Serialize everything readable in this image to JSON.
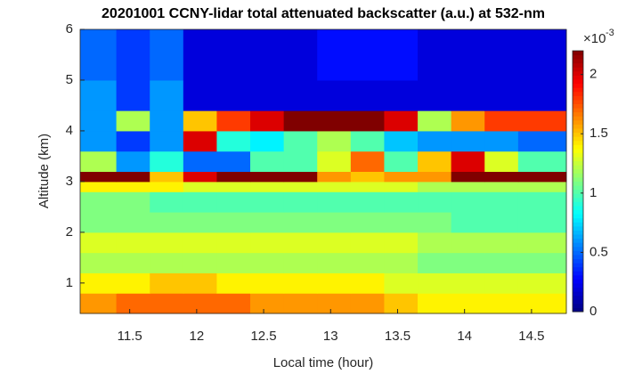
{
  "chart_data": {
    "type": "heatmap",
    "title": "20201001 CCNY-lidar total attenuated backscatter (a.u.) at 532-nm",
    "x_label": "Local time (hour)",
    "y_label": "Altitude (km)",
    "xbins": [
      11.13,
      11.4,
      11.65,
      11.9,
      12.15,
      12.4,
      12.65,
      12.9,
      13.15,
      13.4,
      13.65,
      13.9,
      14.15,
      14.4,
      14.76
    ],
    "ybins": [
      0.4,
      0.8,
      1.2,
      1.6,
      2.0,
      2.4,
      2.8,
      3.0,
      3.2,
      3.6,
      4.0,
      4.4,
      5.0,
      6.0
    ],
    "values": [
      [
        1.6,
        1.7,
        1.7,
        1.7,
        1.7,
        1.6,
        1.6,
        1.6,
        1.6,
        1.5,
        1.4,
        1.4,
        1.4,
        1.4
      ],
      [
        1.4,
        1.4,
        1.5,
        1.5,
        1.4,
        1.4,
        1.4,
        1.4,
        1.4,
        1.3,
        1.3,
        1.3,
        1.3,
        1.3
      ],
      [
        1.2,
        1.2,
        1.2,
        1.2,
        1.2,
        1.2,
        1.2,
        1.2,
        1.2,
        1.2,
        1.1,
        1.1,
        1.1,
        1.1
      ],
      [
        1.3,
        1.3,
        1.3,
        1.3,
        1.3,
        1.3,
        1.3,
        1.3,
        1.3,
        1.3,
        1.2,
        1.2,
        1.2,
        1.2
      ],
      [
        1.1,
        1.1,
        1.1,
        1.1,
        1.1,
        1.1,
        1.1,
        1.1,
        1.1,
        1.1,
        1.1,
        1.0,
        1.0,
        1.0
      ],
      [
        1.1,
        1.1,
        1.0,
        1.0,
        1.0,
        1.0,
        1.0,
        1.0,
        1.0,
        1.0,
        1.0,
        1.0,
        1.0,
        1.0
      ],
      [
        1.4,
        1.4,
        1.4,
        1.3,
        1.3,
        1.3,
        1.3,
        1.3,
        1.3,
        1.3,
        1.2,
        1.2,
        1.2,
        1.2
      ],
      [
        2.2,
        2.2,
        1.5,
        2.0,
        2.2,
        2.2,
        2.2,
        1.6,
        1.5,
        1.6,
        1.6,
        2.2,
        2.2,
        2.2
      ],
      [
        1.2,
        0.6,
        0.9,
        0.5,
        0.5,
        1.0,
        1.0,
        1.3,
        1.7,
        1.0,
        1.5,
        2.0,
        1.3,
        1.0
      ],
      [
        0.6,
        0.4,
        0.6,
        2.0,
        0.9,
        0.8,
        1.0,
        1.2,
        1.0,
        0.7,
        0.6,
        0.6,
        0.6,
        0.5
      ],
      [
        0.6,
        1.2,
        0.6,
        1.5,
        1.8,
        2.0,
        2.2,
        2.2,
        2.2,
        2.0,
        1.2,
        1.6,
        1.8,
        1.8
      ],
      [
        0.6,
        0.4,
        0.6,
        0.2,
        0.2,
        0.2,
        0.2,
        0.2,
        0.2,
        0.2,
        0.2,
        0.2,
        0.2,
        0.2
      ],
      [
        0.5,
        0.4,
        0.5,
        0.2,
        0.2,
        0.2,
        0.2,
        0.3,
        0.3,
        0.3,
        0.2,
        0.2,
        0.2,
        0.2
      ]
    ],
    "xlim": [
      11.13,
      14.76
    ],
    "ylim": [
      0.4,
      6
    ],
    "xticks": [
      11.5,
      12,
      12.5,
      13,
      13.5,
      14,
      14.5
    ],
    "yticks": [
      1,
      2,
      3,
      4,
      5,
      6
    ],
    "clim": [
      0,
      2.2
    ],
    "cticks": [
      0,
      0.5,
      1,
      1.5,
      2
    ],
    "c_multiplier": "×10",
    "c_exponent": "-3",
    "colormap": "jet"
  }
}
